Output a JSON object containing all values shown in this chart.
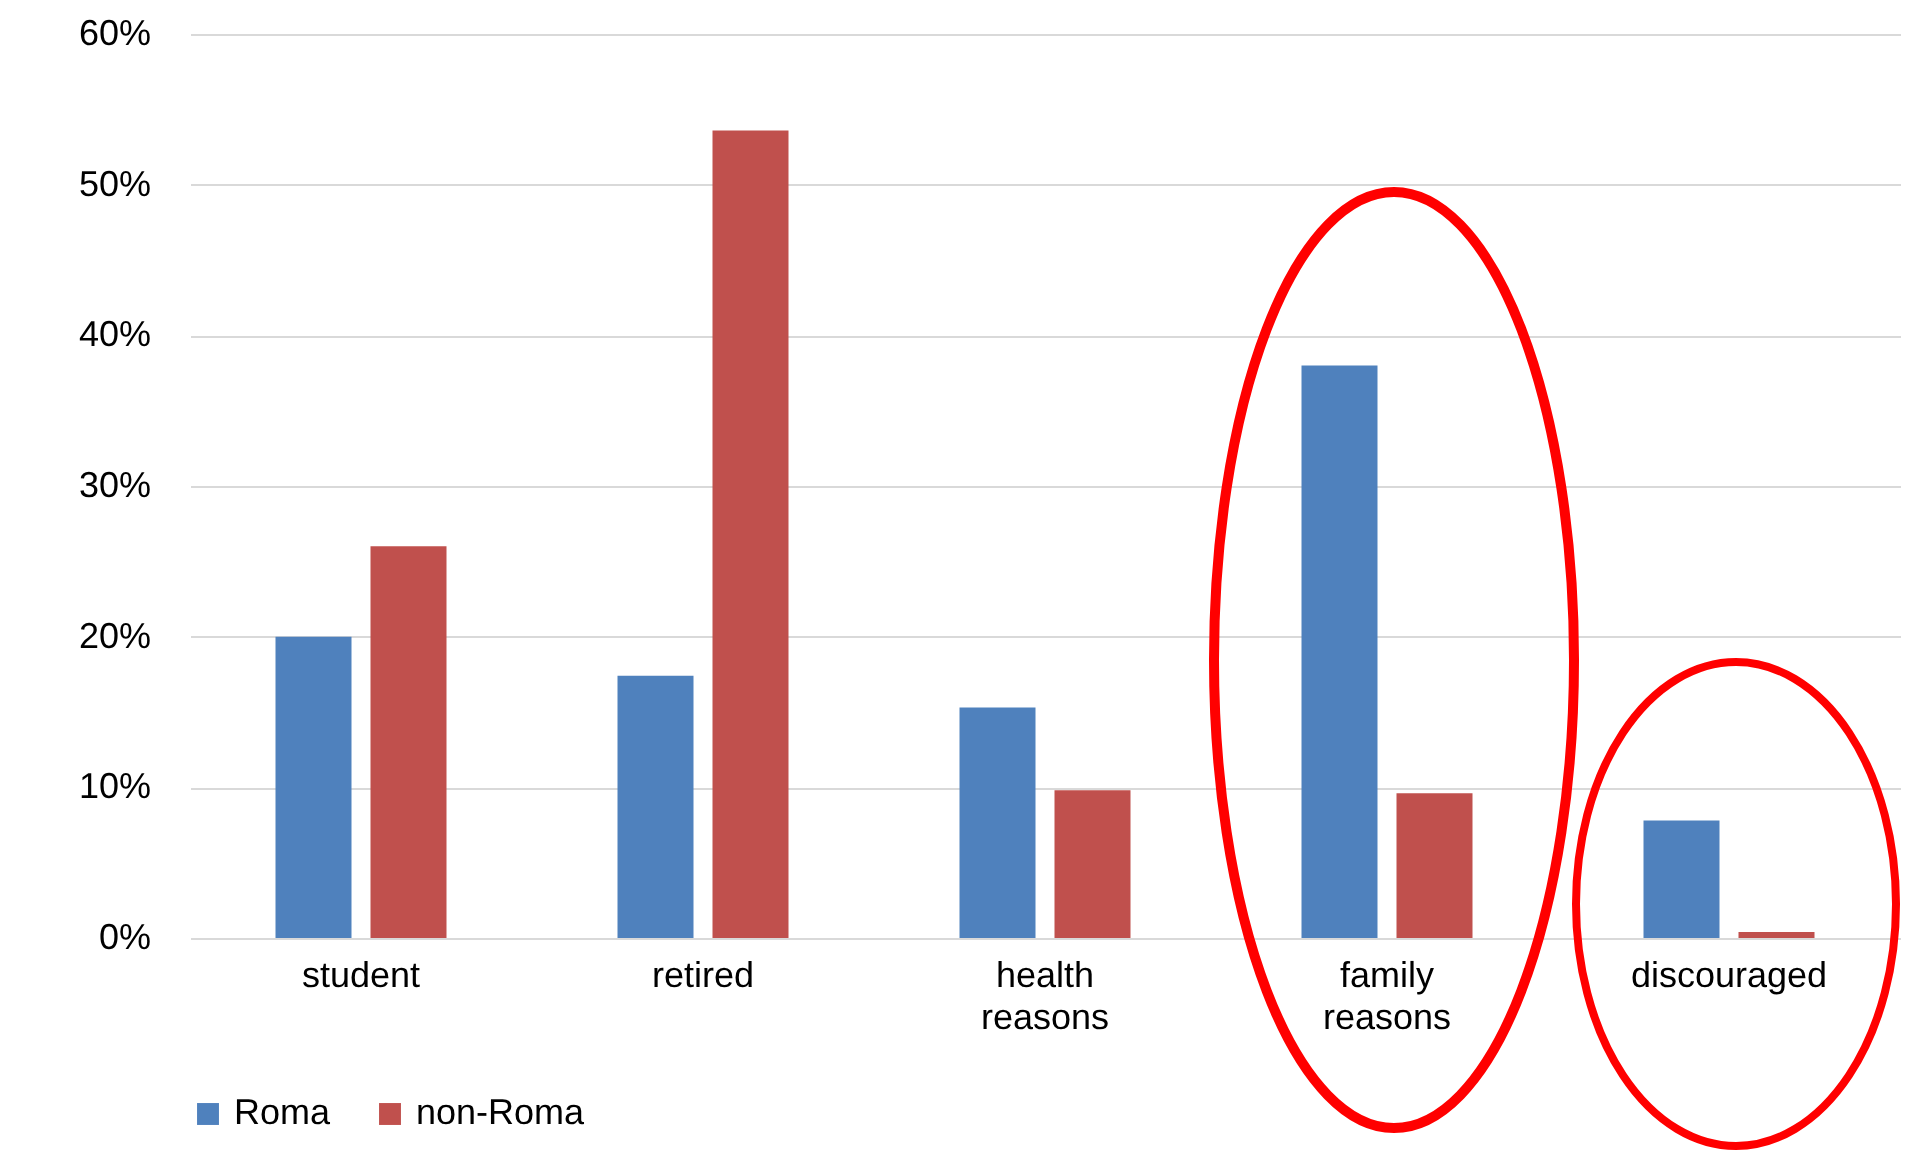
{
  "chart_data": {
    "type": "bar",
    "categories": [
      "student",
      "retired",
      "health reasons",
      "family reasons",
      "discouraged"
    ],
    "series": [
      {
        "name": "Roma",
        "color": "#4f81bd",
        "values": [
          20,
          17.4,
          15.3,
          38,
          7.8
        ]
      },
      {
        "name": "non-Roma",
        "color": "#c0504d",
        "values": [
          26,
          53.6,
          9.8,
          9.6,
          0.4
        ]
      }
    ],
    "ylim": [
      0,
      60
    ],
    "yticks": [
      {
        "value": 0,
        "label": "0%"
      },
      {
        "value": 10,
        "label": "10%"
      },
      {
        "value": 20,
        "label": "20%"
      },
      {
        "value": 30,
        "label": "30%"
      },
      {
        "value": 40,
        "label": "40%"
      },
      {
        "value": 50,
        "label": "50%"
      },
      {
        "value": 60,
        "label": "60%"
      }
    ],
    "grid": "y",
    "legend": "bottom"
  }
}
